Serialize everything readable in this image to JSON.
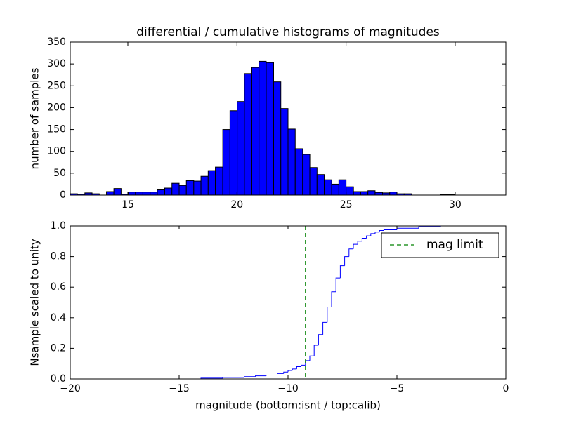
{
  "chart_data": [
    {
      "type": "histogram",
      "title": "differential / cumulative histograms of magnitudes",
      "y_label": "number of samples",
      "color": "#0000ff",
      "bins": [
        12.36,
        12.69,
        13.03,
        13.36,
        13.69,
        14.02,
        14.36,
        14.69,
        15.02,
        15.35,
        15.69,
        16.02,
        16.35,
        16.69,
        17.02,
        17.35,
        17.68,
        18.02,
        18.35,
        18.68,
        19.01,
        19.35,
        19.68,
        20.01,
        20.34,
        20.68,
        21.01,
        21.34,
        21.68,
        22.01,
        22.34,
        22.67,
        23.01,
        23.34,
        23.67,
        24.0,
        24.34,
        24.67,
        25.0,
        25.34,
        25.67,
        26.0,
        26.33,
        26.67,
        27.0,
        27.33,
        27.66,
        28.0,
        28.33,
        28.66,
        29.0,
        29.33,
        29.66,
        29.99,
        30.33,
        30.66,
        30.99,
        31.32,
        31.66,
        31.99,
        32.32
      ],
      "values": [
        3,
        2,
        5,
        3,
        0,
        8,
        15,
        2,
        7,
        7,
        7,
        7,
        12,
        16,
        27,
        22,
        33,
        32,
        43,
        56,
        64,
        150,
        193,
        214,
        278,
        292,
        306,
        303,
        259,
        198,
        151,
        106,
        93,
        63,
        47,
        35,
        25,
        35,
        19,
        8,
        8,
        10,
        6,
        5,
        7,
        3,
        3,
        0,
        0,
        0,
        0,
        1,
        1,
        0,
        0,
        0,
        0,
        0,
        0,
        0
      ],
      "xlim": [
        12.36,
        32.32
      ],
      "xticks": [
        15,
        20,
        25,
        30
      ],
      "ylim": [
        0,
        350
      ],
      "yticks": [
        0,
        50,
        100,
        150,
        200,
        250,
        300,
        350
      ]
    },
    {
      "type": "line",
      "drawstyle": "steps",
      "x_label": "magnitude (bottom:isnt / top:calib)",
      "y_label": "Nsample scaled to unity",
      "x": [
        -20,
        -14,
        -13,
        -12,
        -11.5,
        -11,
        -10.5,
        -10.2,
        -10,
        -9.8,
        -9.6,
        -9.4,
        -9.2,
        -9.0,
        -8.8,
        -8.6,
        -8.4,
        -8.2,
        -8.0,
        -7.8,
        -7.6,
        -7.4,
        -7.2,
        -7.0,
        -6.8,
        -6.6,
        -6.4,
        -6.2,
        -6.0,
        -5.8,
        -5.6,
        -5,
        -4,
        -3,
        0
      ],
      "series": [
        {
          "color": "#0000ff",
          "values": [
            0,
            0.005,
            0.01,
            0.015,
            0.02,
            0.025,
            0.035,
            0.045,
            0.055,
            0.065,
            0.08,
            0.09,
            0.12,
            0.15,
            0.22,
            0.29,
            0.37,
            0.47,
            0.57,
            0.66,
            0.74,
            0.8,
            0.85,
            0.88,
            0.9,
            0.92,
            0.935,
            0.95,
            0.96,
            0.97,
            0.975,
            0.985,
            0.995,
            1.0,
            1.0
          ]
        }
      ],
      "vlines": [
        {
          "name": "mag limit",
          "x": -9.2,
          "color": "#008000",
          "dashed": true
        }
      ],
      "legend": "upper right",
      "xlim": [
        -20,
        0
      ],
      "xticks": [
        {
          "value": -20,
          "label": "−20"
        },
        {
          "value": -15,
          "label": "−15"
        },
        {
          "value": -10,
          "label": "−10"
        },
        {
          "value": -5,
          "label": "−5"
        },
        0
      ],
      "ylim": [
        0,
        1
      ],
      "yticks": [
        {
          "value": 0,
          "label": "0.0"
        },
        {
          "value": 0.2,
          "label": "0.2"
        },
        {
          "value": 0.4,
          "label": "0.4"
        },
        {
          "value": 0.6,
          "label": "0.6"
        },
        {
          "value": 0.8,
          "label": "0.8"
        },
        {
          "value": 1,
          "label": "1.0"
        }
      ]
    }
  ]
}
